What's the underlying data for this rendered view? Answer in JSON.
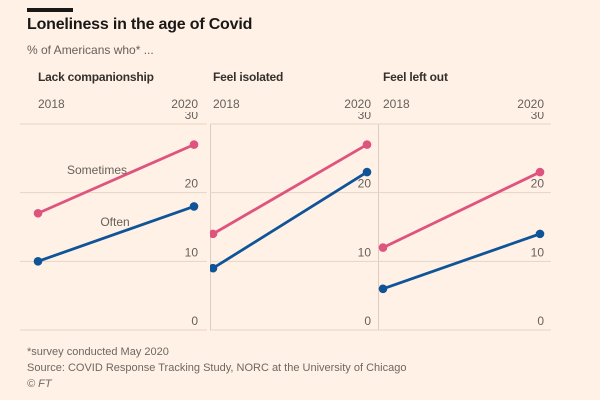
{
  "page": {
    "background": "#fff1e5"
  },
  "header": {
    "title": "Loneliness in the age of Covid",
    "subtitle": "% of Americans who* ..."
  },
  "chart_data": {
    "type": "line",
    "subtype": "slope",
    "x_labels": [
      "2018",
      "2020"
    ],
    "yticks": [
      0,
      10,
      20,
      30
    ],
    "ylim": [
      0,
      30
    ],
    "grid": true,
    "panels": [
      {
        "title": "Lack companionship",
        "series": [
          {
            "name": "Sometimes",
            "values": [
              17,
              27
            ]
          },
          {
            "name": "Often",
            "values": [
              10,
              18
            ]
          }
        ]
      },
      {
        "title": "Feel isolated",
        "series": [
          {
            "name": "Sometimes",
            "values": [
              14,
              27
            ]
          },
          {
            "name": "Often",
            "values": [
              9,
              23
            ]
          }
        ]
      },
      {
        "title": "Feel left out",
        "series": [
          {
            "name": "Sometimes",
            "values": [
              12,
              23
            ]
          },
          {
            "name": "Often",
            "values": [
              6,
              14
            ]
          }
        ]
      }
    ],
    "style": {
      "colors": {
        "Sometimes": "#df537f",
        "Often": "#0f5499"
      },
      "grid_color": "#e5d5c8",
      "axis_text_color": "#66605c"
    }
  },
  "footer": {
    "note": "*survey conducted May 2020",
    "source": "Source: COVID Response Tracking Study, NORC at the University of Chicago",
    "copyright": "© FT"
  }
}
